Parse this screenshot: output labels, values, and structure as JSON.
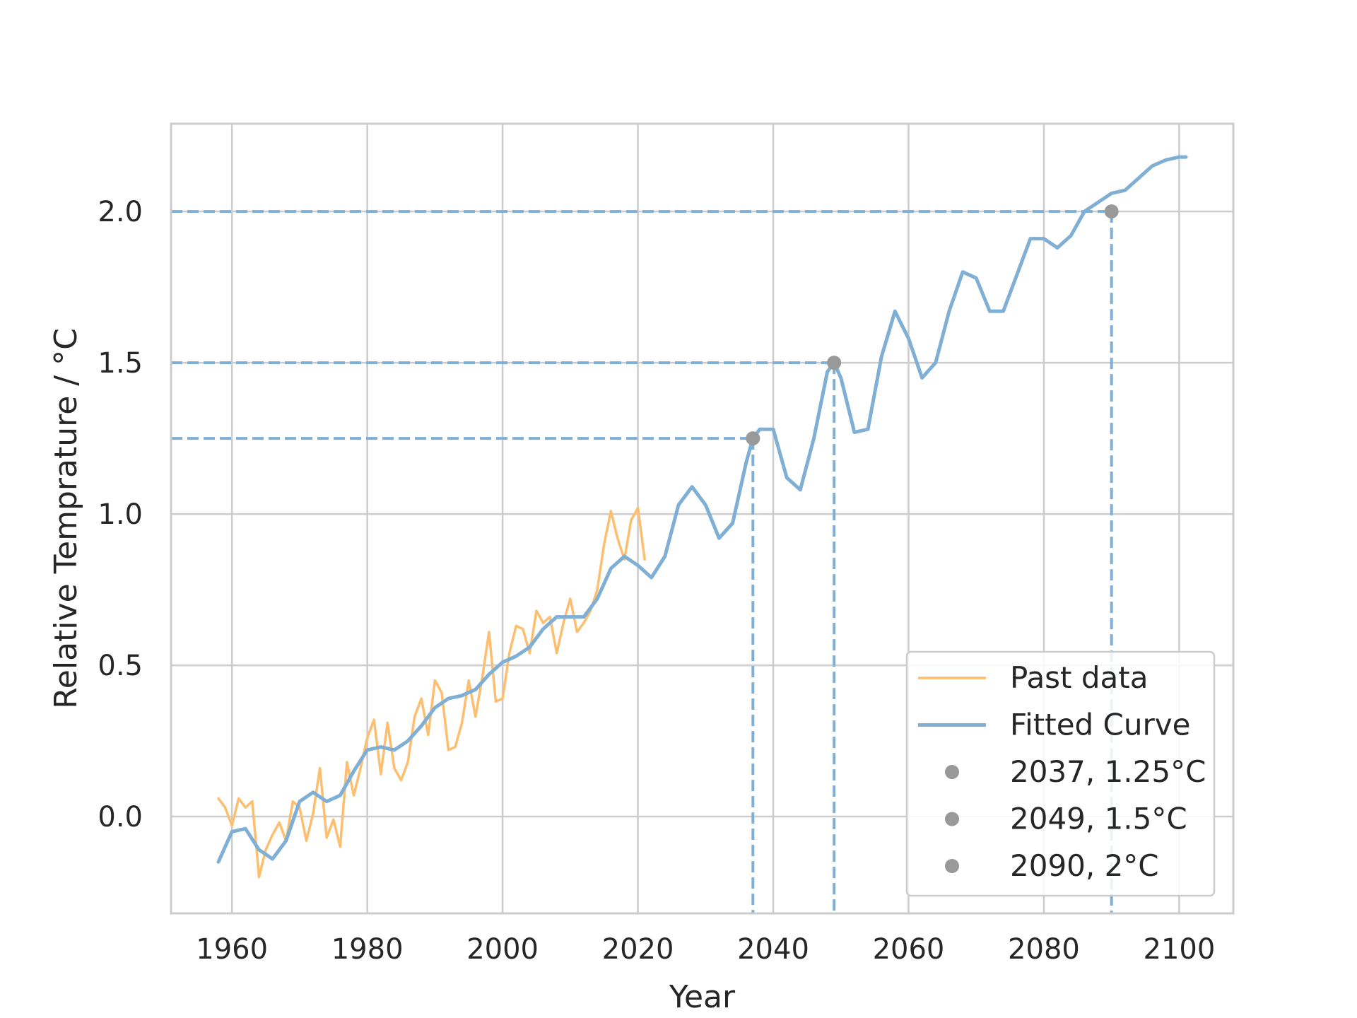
{
  "chart_data": {
    "type": "line",
    "title": "",
    "xlabel": "Year",
    "ylabel": "Relative Temprature / °C",
    "xlim": [
      1951,
      2108
    ],
    "ylim": [
      -0.32,
      2.29
    ],
    "xticks": [
      1960,
      1980,
      2000,
      2020,
      2040,
      2060,
      2080,
      2100
    ],
    "xtick_labels": [
      "1960",
      "1980",
      "2000",
      "2020",
      "2040",
      "2060",
      "2080",
      "2100"
    ],
    "yticks": [
      0.0,
      0.5,
      1.0,
      1.5,
      2.0
    ],
    "ytick_labels": [
      "0.0",
      "0.5",
      "1.0",
      "1.5",
      "2.0"
    ],
    "grid": true,
    "legend_position": "lower-right",
    "series": [
      {
        "name": "Past data",
        "kind": "line",
        "color": "#fdbf6f",
        "x": [
          1958,
          1959,
          1960,
          1961,
          1962,
          1963,
          1964,
          1965,
          1966,
          1967,
          1968,
          1969,
          1970,
          1971,
          1972,
          1973,
          1974,
          1975,
          1976,
          1977,
          1978,
          1979,
          1980,
          1981,
          1982,
          1983,
          1984,
          1985,
          1986,
          1987,
          1988,
          1989,
          1990,
          1991,
          1992,
          1993,
          1994,
          1995,
          1996,
          1997,
          1998,
          1999,
          2000,
          2001,
          2002,
          2003,
          2004,
          2005,
          2006,
          2007,
          2008,
          2009,
          2010,
          2011,
          2012,
          2013,
          2014,
          2015,
          2016,
          2017,
          2018,
          2019,
          2020,
          2021
        ],
        "y": [
          0.06,
          0.03,
          -0.03,
          0.06,
          0.03,
          0.05,
          -0.2,
          -0.11,
          -0.06,
          -0.02,
          -0.08,
          0.05,
          0.03,
          -0.08,
          0.01,
          0.16,
          -0.07,
          -0.01,
          -0.1,
          0.18,
          0.07,
          0.16,
          0.26,
          0.32,
          0.14,
          0.31,
          0.16,
          0.12,
          0.18,
          0.33,
          0.39,
          0.27,
          0.45,
          0.41,
          0.22,
          0.23,
          0.31,
          0.45,
          0.33,
          0.46,
          0.61,
          0.38,
          0.39,
          0.54,
          0.63,
          0.62,
          0.54,
          0.68,
          0.64,
          0.66,
          0.54,
          0.64,
          0.72,
          0.61,
          0.64,
          0.68,
          0.75,
          0.9,
          1.01,
          0.92,
          0.85,
          0.98,
          1.02,
          0.85
        ]
      },
      {
        "name": "Fitted Curve",
        "kind": "line",
        "color": "#7fafd4",
        "x": [
          1958,
          1960,
          1962,
          1964,
          1966,
          1968,
          1970,
          1972,
          1974,
          1976,
          1978,
          1980,
          1982,
          1984,
          1986,
          1988,
          1990,
          1992,
          1994,
          1996,
          1998,
          2000,
          2002,
          2004,
          2006,
          2008,
          2010,
          2012,
          2014,
          2016,
          2018,
          2020,
          2022,
          2024,
          2026,
          2028,
          2030,
          2032,
          2034,
          2036,
          2037,
          2038,
          2040,
          2042,
          2044,
          2046,
          2048,
          2049,
          2050,
          2052,
          2054,
          2056,
          2058,
          2060,
          2062,
          2064,
          2066,
          2068,
          2070,
          2072,
          2074,
          2076,
          2078,
          2080,
          2082,
          2084,
          2086,
          2088,
          2090,
          2092,
          2094,
          2096,
          2098,
          2100,
          2101
        ],
        "y": [
          -0.15,
          -0.05,
          -0.04,
          -0.11,
          -0.14,
          -0.08,
          0.05,
          0.08,
          0.05,
          0.07,
          0.15,
          0.22,
          0.23,
          0.22,
          0.25,
          0.3,
          0.36,
          0.39,
          0.4,
          0.42,
          0.47,
          0.51,
          0.53,
          0.56,
          0.62,
          0.66,
          0.66,
          0.66,
          0.72,
          0.82,
          0.86,
          0.83,
          0.79,
          0.86,
          1.03,
          1.09,
          1.03,
          0.92,
          0.97,
          1.17,
          1.25,
          1.28,
          1.28,
          1.12,
          1.08,
          1.25,
          1.47,
          1.5,
          1.45,
          1.27,
          1.28,
          1.52,
          1.67,
          1.58,
          1.45,
          1.5,
          1.67,
          1.8,
          1.78,
          1.67,
          1.67,
          1.79,
          1.91,
          1.91,
          1.88,
          1.92,
          2.0,
          2.03,
          2.06,
          2.07,
          2.11,
          2.15,
          2.17,
          2.18,
          2.18
        ]
      },
      {
        "name": "2037, 1.25°C",
        "kind": "point",
        "color": "#999999",
        "x": [
          2037
        ],
        "y": [
          1.25
        ]
      },
      {
        "name": "2049, 1.5°C",
        "kind": "point",
        "color": "#999999",
        "x": [
          2049
        ],
        "y": [
          1.5
        ]
      },
      {
        "name": "2090, 2°C",
        "kind": "point",
        "color": "#999999",
        "x": [
          2090
        ],
        "y": [
          2.0
        ]
      }
    ],
    "reference_lines": [
      {
        "x": 2037,
        "y": 1.25,
        "color": "#7fafd4",
        "style": "dashed"
      },
      {
        "x": 2049,
        "y": 1.5,
        "color": "#7fafd4",
        "style": "dashed"
      },
      {
        "x": 2090,
        "y": 2.0,
        "color": "#7fafd4",
        "style": "dashed"
      }
    ],
    "colors": {
      "grid": "#cccccc",
      "spine": "#cccccc",
      "text": "#262626"
    }
  }
}
